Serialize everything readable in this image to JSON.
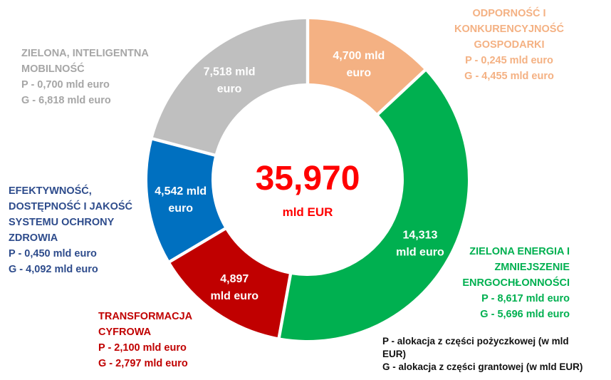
{
  "chart_data": {
    "type": "donut",
    "center": {
      "value": "35,970",
      "unit": "mld EUR"
    },
    "segments": [
      {
        "key": "odpornosc",
        "value": 4.7,
        "label": [
          "4,700 mld",
          "euro"
        ],
        "color": "#F4B183",
        "annotation": [
          "ODPORNOŚĆ I",
          "KONKURENCYJNOŚĆ",
          "GOSPODARKI",
          "P - 0,245 mld euro",
          "G - 4,455 mld euro"
        ],
        "loan": 0.245,
        "grant": 4.455
      },
      {
        "key": "zielona_energia",
        "value": 14.313,
        "label": [
          "14,313",
          "mld euro"
        ],
        "color": "#00B050",
        "annotation": [
          "ZIELONA ENERGIA I",
          "ZMNIEJSZENIE",
          "ENRGOCHŁONNOŚCI",
          "P - 8,617 mld euro",
          "G - 5,696 mld euro"
        ],
        "loan": 8.617,
        "grant": 5.696
      },
      {
        "key": "transformacja",
        "value": 4.897,
        "label": [
          "4,897",
          "mld euro"
        ],
        "color": "#C00000",
        "annotation": [
          "TRANSFORMACJA",
          "CYFROWA",
          "P - 2,100 mld euro",
          "G - 2,797 mld euro"
        ],
        "loan": 2.1,
        "grant": 2.797
      },
      {
        "key": "zdrowie",
        "value": 4.542,
        "label": [
          "4,542 mld",
          "euro"
        ],
        "color": "#0070C0",
        "annotation": [
          "EFEKTYWNOŚĆ,",
          "DOSTĘPNOŚĆ I JAKOŚĆ",
          "SYSTEMU OCHRONY",
          "ZDROWIA",
          "P - 0,450 mld euro",
          "G - 4,092 mld euro"
        ],
        "loan": 0.45,
        "grant": 4.092
      },
      {
        "key": "mobilnosc",
        "value": 7.518,
        "label": [
          "7,518 mld",
          "euro"
        ],
        "color": "#BFBFBF",
        "annotation": [
          "ZIELONA, INTELIGENTNA",
          "MOBILNOŚĆ",
          "P - 0,700 mld euro",
          "G - 6,818 mld euro"
        ],
        "loan": 0.7,
        "grant": 6.818
      }
    ],
    "annotation_colors": {
      "odpornosc": "#F4B183",
      "zielona_energia": "#00B050",
      "transformacja": "#C00000",
      "zdrowie": "#2E4C8C",
      "mobilnosc": "#A6A6A6"
    }
  },
  "legend": [
    "P -  alokacja z części pożyczkowej (w mld",
    "EUR)",
    "G - alokacja z części grantowej (w mld EUR)"
  ]
}
